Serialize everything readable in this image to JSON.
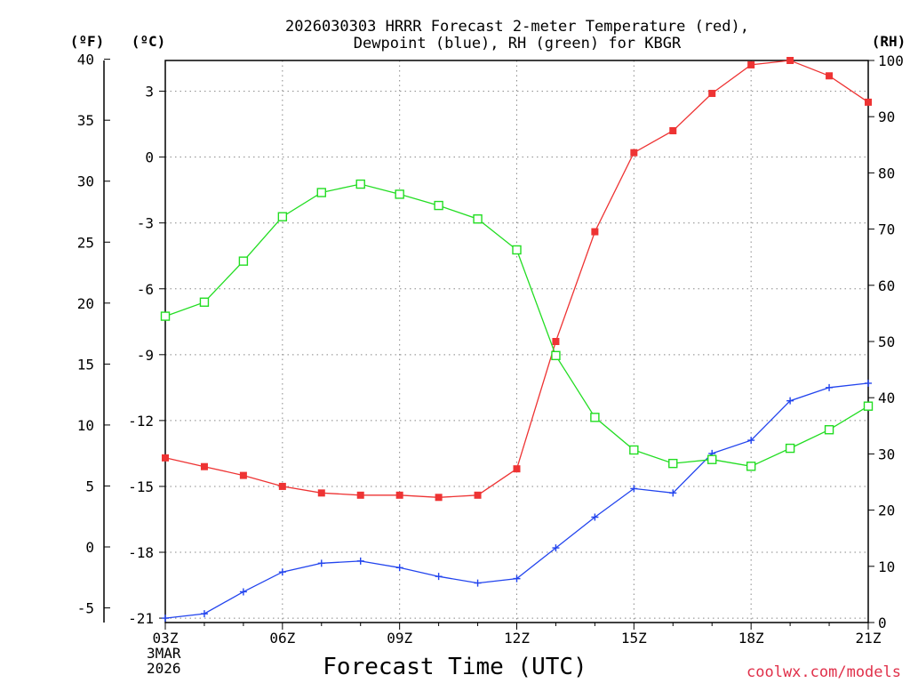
{
  "chart_data": {
    "type": "line",
    "title_line1": "2026030303 HRRR Forecast 2-meter Temperature (red),",
    "title_line2": "Dewpoint (blue), RH (green) for KBGR",
    "xlabel": "Forecast Time (UTC)",
    "x_ticks": [
      "03Z",
      "06Z",
      "09Z",
      "12Z",
      "15Z",
      "18Z",
      "21Z"
    ],
    "x_tick_hours": [
      3,
      6,
      9,
      12,
      15,
      18,
      21
    ],
    "x_date_line1": "3MAR",
    "x_date_line2": "2026",
    "xlim": [
      3,
      21
    ],
    "units": {
      "f": "(ºF)",
      "c": "(ºC)",
      "rh": "(RH)"
    },
    "y_axis_c": {
      "ticks": [
        3,
        0,
        -3,
        -6,
        -9,
        -12,
        -15,
        -18,
        -21
      ],
      "range": [
        -21.2,
        4.4
      ]
    },
    "y_axis_f": {
      "ticks": [
        40,
        35,
        30,
        25,
        20,
        15,
        10,
        5,
        0,
        -5
      ],
      "range": [
        -6.2,
        39.9
      ]
    },
    "y_axis_rh": {
      "ticks": [
        100,
        90,
        80,
        70,
        60,
        50,
        40,
        30,
        20,
        10,
        0
      ],
      "range": [
        0,
        100
      ]
    },
    "series": [
      {
        "name": "Temperature",
        "unit": "C",
        "color": "#ee3333",
        "marker": "filled-square",
        "x": [
          3,
          4,
          5,
          6,
          7,
          8,
          9,
          10,
          11,
          12,
          13,
          14,
          15,
          16,
          17,
          18,
          19,
          20,
          21
        ],
        "values": [
          -13.7,
          -14.1,
          -14.5,
          -15.0,
          -15.3,
          -15.4,
          -15.4,
          -15.5,
          -15.4,
          -14.2,
          -8.4,
          -3.4,
          0.2,
          1.2,
          2.9,
          4.2,
          4.4,
          3.7,
          2.5
        ]
      },
      {
        "name": "Dewpoint",
        "unit": "C",
        "color": "#2244ee",
        "marker": "plus",
        "x": [
          3,
          4,
          5,
          6,
          7,
          8,
          9,
          10,
          11,
          12,
          13,
          14,
          15,
          16,
          17,
          18,
          19,
          20,
          21
        ],
        "values": [
          -21.0,
          -20.8,
          -19.8,
          -18.9,
          -18.5,
          -18.4,
          -18.7,
          -19.1,
          -19.4,
          -19.2,
          -17.8,
          -16.4,
          -15.1,
          -15.3,
          -13.5,
          -12.9,
          -11.1,
          -10.5,
          -10.3
        ]
      },
      {
        "name": "RH",
        "unit": "%",
        "color": "#22dd22",
        "marker": "open-square",
        "x": [
          3,
          4,
          5,
          6,
          7,
          8,
          9,
          10,
          11,
          12,
          13,
          14,
          15,
          16,
          17,
          18,
          19,
          20,
          21
        ],
        "values": [
          54.5,
          57,
          64.3,
          72.2,
          76.5,
          78,
          76.2,
          74.2,
          71.8,
          66.3,
          47.5,
          36.5,
          30.7,
          28.3,
          29,
          27.8,
          31,
          34.3,
          38.5
        ]
      }
    ],
    "credit": "coolwx.com/models"
  }
}
